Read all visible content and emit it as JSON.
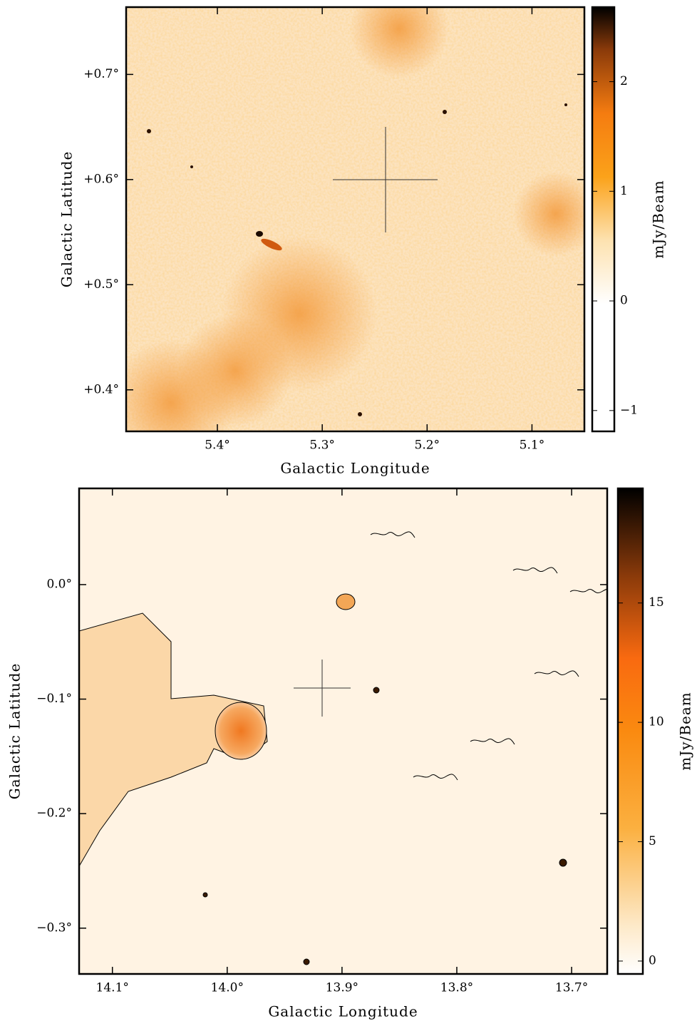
{
  "chart_data": [
    {
      "type": "image",
      "xlabel": "Galactic Longitude",
      "ylabel": "Galactic Latitude",
      "xlim": [
        5.487,
        5.05
      ],
      "ylim": [
        0.3605,
        0.764
      ],
      "xticks": [
        {
          "value": 5.4,
          "label": "5.4°"
        },
        {
          "value": 5.3,
          "label": "5.3°"
        },
        {
          "value": 5.2,
          "label": "5.2°"
        },
        {
          "value": 5.1,
          "label": "5.1°"
        }
      ],
      "yticks": [
        {
          "value": 0.4,
          "label": "+0.4°"
        },
        {
          "value": 0.5,
          "label": "+0.5°"
        },
        {
          "value": 0.6,
          "label": "+0.6°"
        },
        {
          "value": 0.7,
          "label": "+0.7°"
        }
      ],
      "colorbar": {
        "label": "mJy/Beam",
        "lim": [
          -1.19,
          2.68
        ],
        "ticks": [
          {
            "value": -1,
            "label": "−1"
          },
          0,
          1,
          2
        ]
      }
    },
    {
      "type": "image",
      "xlabel": "Galactic Longitude",
      "ylabel": "Galactic Latitude",
      "xlim": [
        14.129,
        13.669
      ],
      "ylim": [
        -0.34,
        0.084
      ],
      "xticks": [
        {
          "value": 14.1,
          "label": "14.1°"
        },
        {
          "value": 14.0,
          "label": "14.0°"
        },
        {
          "value": 13.9,
          "label": "13.9°"
        },
        {
          "value": 13.8,
          "label": "13.8°"
        },
        {
          "value": 13.7,
          "label": "13.7°"
        }
      ],
      "yticks": [
        {
          "value": -0.3,
          "label": "−0.3°"
        },
        {
          "value": -0.2,
          "label": "−0.2°"
        },
        {
          "value": -0.1,
          "label": "−0.1°"
        },
        {
          "value": 0.0,
          "label": "0.0°"
        }
      ],
      "colorbar": {
        "label": "mJy/Beam",
        "lim": [
          -0.54,
          19.8
        ],
        "ticks": [
          0,
          5,
          10,
          15
        ]
      }
    }
  ]
}
